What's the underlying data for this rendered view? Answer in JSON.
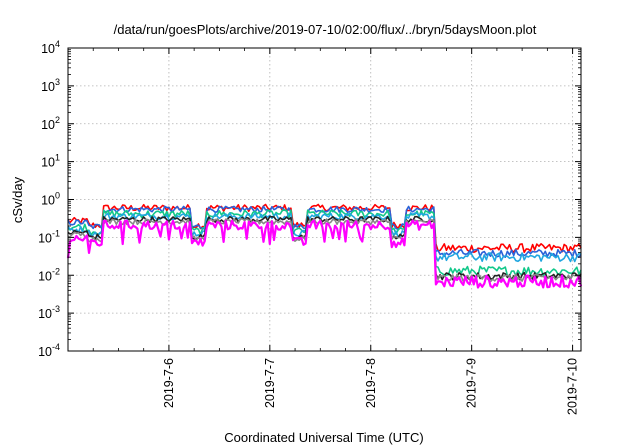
{
  "chart_data": {
    "type": "line",
    "title": "/data/run/goesPlots/archive/2019-07-10/02:00/flux/../bryn/5daysMoon.plot",
    "xlabel": "Coordinated Universal Time (UTC)",
    "ylabel": "cSv/day",
    "y_scale": "log",
    "ylim": [
      0.0001,
      10000
    ],
    "xlim": [
      "2019-07-05 00:00",
      "2019-07-10 02:00"
    ],
    "grid": true,
    "y_ticks": [
      {
        "base": "10",
        "exp": "-4"
      },
      {
        "base": "10",
        "exp": "-3"
      },
      {
        "base": "10",
        "exp": "-2"
      },
      {
        "base": "10",
        "exp": "-1"
      },
      {
        "base": "10",
        "exp": "0"
      },
      {
        "base": "10",
        "exp": "1"
      },
      {
        "base": "10",
        "exp": "2"
      },
      {
        "base": "10",
        "exp": "3"
      },
      {
        "base": "10",
        "exp": "4"
      }
    ],
    "x_ticks": [
      "2019-7-6",
      "2019-7-7",
      "2019-7-8",
      "2019-7-9",
      "2019-7-10"
    ],
    "x_tick_hours": [
      24,
      48,
      72,
      96,
      120
    ],
    "x_range_hours": [
      0,
      122
    ],
    "drop_hour": 87.5,
    "series": [
      {
        "color": "#ff0000",
        "before": 0.6,
        "after": 0.052,
        "noise": 0.18
      },
      {
        "color": "#2a62d8",
        "before": 0.55,
        "after": 0.038,
        "noise": 0.16
      },
      {
        "color": "#12c88a",
        "before": 0.42,
        "after": 0.013,
        "noise": 0.2
      },
      {
        "color": "#20a6e0",
        "before": 0.36,
        "after": 0.03,
        "noise": 0.18
      },
      {
        "color": "#222222",
        "before": 0.3,
        "after": 0.0095,
        "noise": 0.15
      },
      {
        "color": "#888888",
        "before": 0.26,
        "after": 0.0085,
        "noise": 0.15
      },
      {
        "color": "#ff00ff",
        "before": 0.21,
        "after": 0.0068,
        "noise": 0.25
      }
    ]
  }
}
